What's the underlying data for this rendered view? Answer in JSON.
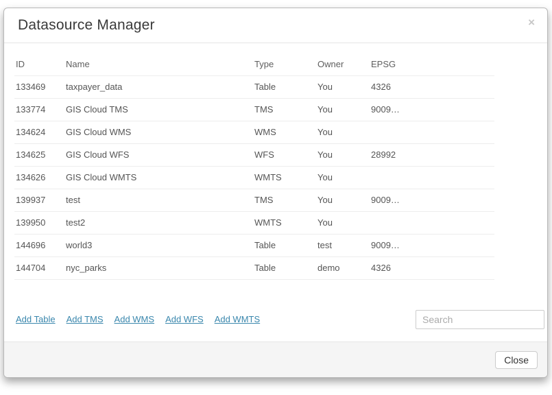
{
  "dialog": {
    "title": "Datasource Manager",
    "close_icon": "×"
  },
  "table": {
    "columns": [
      "ID",
      "Name",
      "Type",
      "Owner",
      "EPSG"
    ],
    "rows": [
      [
        "133469",
        "taxpayer_data",
        "Table",
        "You",
        "4326"
      ],
      [
        "133774",
        "GIS Cloud TMS",
        "TMS",
        "You",
        "9009…"
      ],
      [
        "134624",
        "GIS Cloud WMS",
        "WMS",
        "You",
        ""
      ],
      [
        "134625",
        "GIS Cloud WFS",
        "WFS",
        "You",
        "28992"
      ],
      [
        "134626",
        "GIS Cloud WMTS",
        "WMTS",
        "You",
        ""
      ],
      [
        "139937",
        "test",
        "TMS",
        "You",
        "9009…"
      ],
      [
        "139950",
        "test2",
        "WMTS",
        "You",
        ""
      ],
      [
        "144696",
        "world3",
        "Table",
        "test",
        "9009…"
      ],
      [
        "144704",
        "nyc_parks",
        "Table",
        "demo",
        "4326"
      ]
    ]
  },
  "actions": {
    "links": [
      {
        "label": "Add Table"
      },
      {
        "label": "Add TMS"
      },
      {
        "label": "Add WMS"
      },
      {
        "label": "Add WFS"
      },
      {
        "label": "Add WMTS"
      }
    ]
  },
  "search": {
    "placeholder": "Search"
  },
  "footer": {
    "close_label": "Close"
  },
  "colors": {
    "link": "#3a87ad",
    "footer_background": "#f5f5f5",
    "row_divider": "#ededed",
    "text": "#555555"
  }
}
